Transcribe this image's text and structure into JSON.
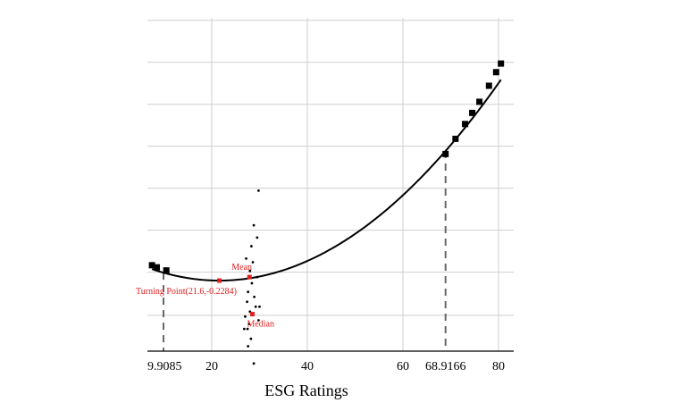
{
  "chart_data": {
    "type": "line",
    "xlabel": "ESG Ratings",
    "ylabel": "",
    "xlim": [
      9.9085,
      80
    ],
    "ylim": [
      -0.8,
      1.9
    ],
    "grid": true,
    "x_ticks": [
      {
        "value": 9.9085,
        "label": "9.9085"
      },
      {
        "value": 20,
        "label": "20"
      },
      {
        "value": 40,
        "label": "40"
      },
      {
        "value": 60,
        "label": "60"
      },
      {
        "value": 68.9166,
        "label": "68.9166"
      },
      {
        "value": 80,
        "label": "80"
      }
    ],
    "y_gridlines": [
      -0.8,
      -0.51,
      -0.16,
      0.18,
      0.52,
      0.86,
      1.2,
      1.54,
      1.88
    ],
    "curve": {
      "description_value": "quadratic U-shaped fit",
      "vertex": {
        "x": 21.6,
        "y": -0.2284
      },
      "curvature": 0.000469
    },
    "square_markers": [
      {
        "x": 7.5,
        "y": -0.104
      },
      {
        "x": 8.5,
        "y": -0.121
      },
      {
        "x": 10.5,
        "y": -0.146
      },
      {
        "x": 68.9166,
        "y": 0.797
      },
      {
        "x": 71,
        "y": 0.92
      },
      {
        "x": 73,
        "y": 1.04
      },
      {
        "x": 74.5,
        "y": 1.13
      },
      {
        "x": 76,
        "y": 1.22
      },
      {
        "x": 78,
        "y": 1.35
      },
      {
        "x": 79.5,
        "y": 1.46
      },
      {
        "x": 80.5,
        "y": 1.53
      }
    ],
    "dashed_verticals": [
      9.9085,
      68.9166
    ],
    "scatter": [
      {
        "x": 29.8,
        "y": 0.5
      },
      {
        "x": 28.8,
        "y": 0.22
      },
      {
        "x": 29.5,
        "y": 0.12
      },
      {
        "x": 28.3,
        "y": 0.05
      },
      {
        "x": 28.6,
        "y": -0.08
      },
      {
        "x": 27.2,
        "y": -0.05
      },
      {
        "x": 28.0,
        "y": -0.15
      },
      {
        "x": 29.5,
        "y": -0.2
      },
      {
        "x": 28.4,
        "y": -0.25
      },
      {
        "x": 27.6,
        "y": -0.32
      },
      {
        "x": 28.9,
        "y": -0.36
      },
      {
        "x": 27.4,
        "y": -0.4
      },
      {
        "x": 30.0,
        "y": -0.44
      },
      {
        "x": 28.0,
        "y": -0.48
      },
      {
        "x": 27.0,
        "y": -0.52
      },
      {
        "x": 29.8,
        "y": -0.55
      },
      {
        "x": 27.8,
        "y": -0.58
      },
      {
        "x": 27.5,
        "y": -0.62
      },
      {
        "x": 28.2,
        "y": -0.7
      },
      {
        "x": 27.6,
        "y": -0.76
      },
      {
        "x": 28.8,
        "y": -0.9
      },
      {
        "x": 26.8,
        "y": -0.62
      },
      {
        "x": 29.2,
        "y": -0.44
      }
    ],
    "annotations": [
      {
        "label": "Mean",
        "x": 27.9,
        "y": -0.2
      },
      {
        "label": "Median",
        "x": 28.5,
        "y": -0.5
      },
      {
        "label": "Turning Point(21.6,-0.2284)",
        "x": 21.6,
        "y": -0.2284
      }
    ]
  }
}
